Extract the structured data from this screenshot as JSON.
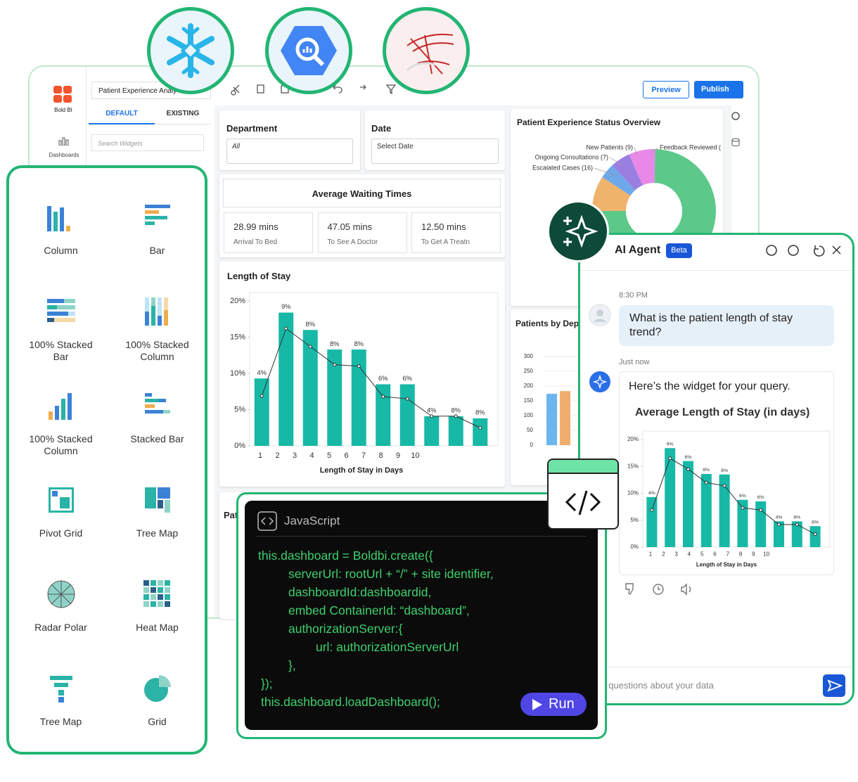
{
  "app": {
    "logo": "Bold BI",
    "nav": "Dashboards",
    "dashboard_name": "Patient Experience Analy",
    "tabs": [
      "DEFAULT",
      "EXISTING"
    ],
    "search": "Search Widgets",
    "preview": "Preview",
    "publish": "Publish",
    "hidden_title": "Pati"
  },
  "filters": [
    {
      "label": "Department",
      "value": "All"
    },
    {
      "label": "Date",
      "value": "Select Date"
    }
  ],
  "waiting_times": {
    "title": "Average Waiting Times",
    "cards": [
      {
        "value": "28.99 mins",
        "label": "Arrival To Bed"
      },
      {
        "value": "47.05 mins",
        "label": "To See A Doctor"
      },
      {
        "value": "12.50 mins",
        "label": "To Get A Treatn"
      }
    ]
  },
  "chart_data": [
    {
      "type": "bar",
      "title": "Length of Stay",
      "x_label": "Length of Stay in Days",
      "categories": [
        "1",
        "2",
        "3",
        "4",
        "5",
        "6",
        "7",
        "8",
        "9",
        "10"
      ],
      "series": [
        {
          "type": "bar",
          "color": "#17b8a6",
          "values": [
            9.3,
            18.4,
            16,
            13.3,
            13.3,
            8.5,
            8.5,
            4.1,
            4.1,
            3.8
          ]
        },
        {
          "type": "line",
          "color": "#333333",
          "values": [
            6.9,
            16.2,
            13.7,
            11.2,
            11,
            6.8,
            6.5,
            4.1,
            4.1,
            2.5
          ]
        }
      ],
      "annotations": [
        "4%",
        "9%",
        "8%",
        "8%",
        "8%",
        "6%",
        "6%",
        "4%",
        "8%",
        "8%"
      ],
      "ylim": [
        0,
        20
      ],
      "yticks": [
        {
          "value": 0,
          "label": "0%"
        },
        {
          "value": 5,
          "label": "5%"
        },
        {
          "value": 10,
          "label": "10%"
        },
        {
          "value": 15,
          "label": "15%"
        },
        {
          "value": 20,
          "label": "20%"
        }
      ]
    },
    {
      "type": "pie",
      "title": "Patient Experience Status Overview",
      "categories": [
        "Escalated Cases (16)",
        "Ongoing Consultations (7)",
        "New Patients (9)",
        "Feedback Reviewed (",
        null
      ],
      "values": [
        16,
        7,
        9,
        12,
        130
      ],
      "colors": [
        "#f0b36b",
        "#6ea8e8",
        "#9a7fe0",
        "#e889e8",
        "#5cc98a"
      ]
    },
    {
      "type": "bar",
      "title": "Patients by Dep",
      "categories": [
        null
      ],
      "series": [
        {
          "color": "#6cb6ef",
          "values": [
            174
          ]
        },
        {
          "color": "#f0ad6e",
          "values": [
            183
          ]
        }
      ],
      "ylim": [
        0,
        300
      ],
      "yticks": [
        0,
        50,
        100,
        150,
        200,
        250,
        300
      ]
    },
    {
      "type": "bar",
      "title": "Average Length of Stay (in days)",
      "x_label": "Length of Stay in Days",
      "categories": [
        "1",
        "2",
        "3",
        "4",
        "5",
        "6",
        "7",
        "8",
        "9",
        "10"
      ],
      "series": [
        {
          "type": "bar",
          "color": "#17b8a6",
          "values": [
            9.3,
            18.4,
            16,
            13.6,
            13.5,
            8.8,
            8.5,
            4.8,
            4.8,
            3.9
          ]
        },
        {
          "type": "line",
          "color": "#333333",
          "values": [
            6.9,
            16.5,
            14.5,
            12,
            11.4,
            7.3,
            6.9,
            4.2,
            4.2,
            2.4
          ]
        }
      ],
      "annotations": [
        "4%",
        "9%",
        "8%",
        "8%",
        "8%",
        "6%",
        "6%",
        "4%",
        "8%",
        "8%"
      ],
      "ylim": [
        0,
        20
      ],
      "yticks": [
        {
          "value": 0,
          "label": "0%"
        },
        {
          "value": 5,
          "label": "5%"
        },
        {
          "value": 10,
          "label": "10%"
        },
        {
          "value": 15,
          "label": "15%"
        },
        {
          "value": 20,
          "label": "20%"
        }
      ]
    }
  ],
  "widgets": [
    "Column",
    "Bar",
    "100% Stacked Bar",
    "100% Stacked Column",
    "100% Stacked Column",
    "Stacked Bar",
    "Pivot Grid",
    "Tree Map",
    "Radar Polar",
    "Heat Map",
    "Tree Map",
    "Grid"
  ],
  "code": {
    "language": "JavaScript",
    "lines": [
      "this.dashboard = Boldbi.create({",
      "serverUrl: rootUrl + “/” + site identifier,",
      "dashboardId:dashboardid,",
      "embed ContainerId: “dashboard”,",
      "authorizationServer:{",
      "url: authorizationServerUrl",
      "},",
      "});",
      "this.dashboard.loadDashboard();"
    ],
    "run": "Run"
  },
  "ai_agent": {
    "title": "AI Agent",
    "badge": "Beta",
    "time": "8:30 PM",
    "question": "What is the patient length of stay trend?",
    "reply_time": "Just now",
    "reply": "Here’s the widget for your query.",
    "placeholder": "Ask questions about your data"
  }
}
